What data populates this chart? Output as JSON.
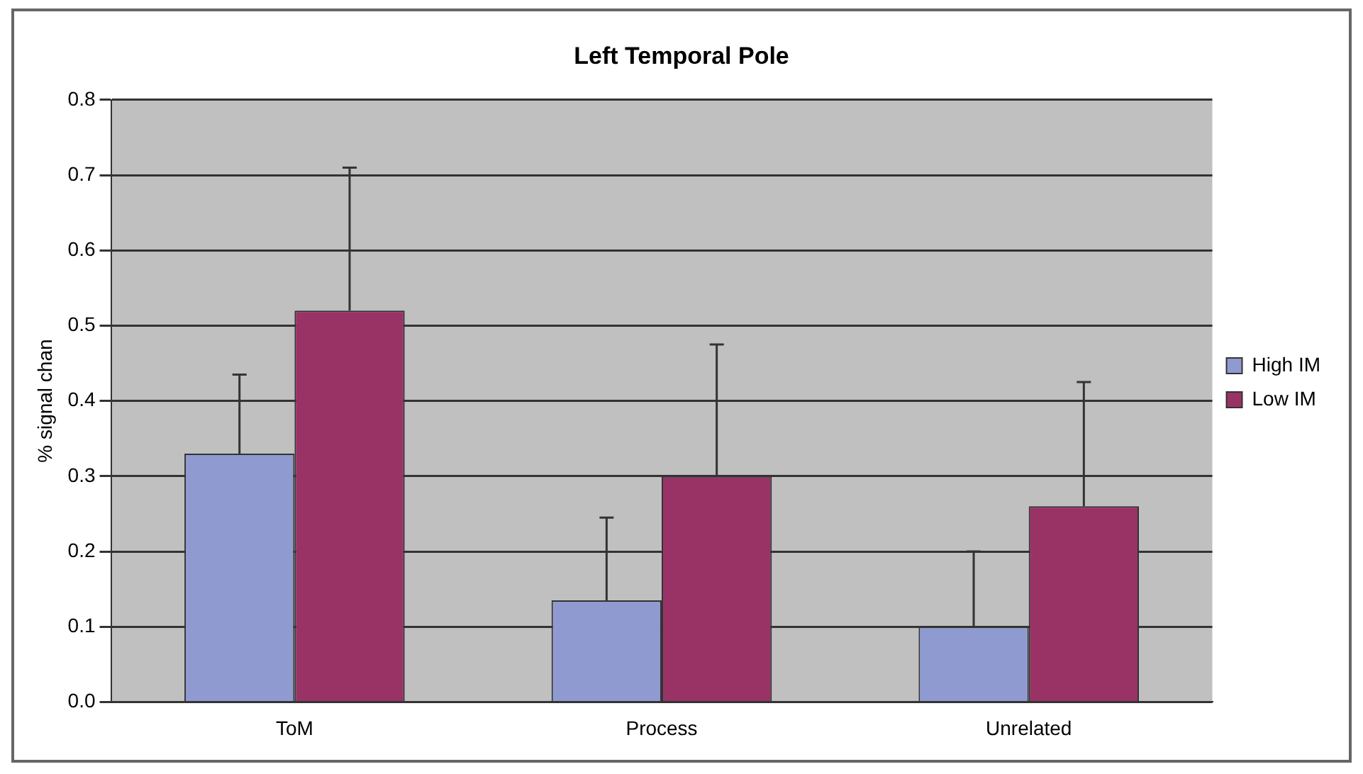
{
  "chart_data": {
    "type": "bar",
    "title": "Left Temporal Pole",
    "ylabel": "% signal chan",
    "categories": [
      "ToM",
      "Process",
      "Unrelated"
    ],
    "series": [
      {
        "name": "High IM",
        "color": "#8f9bd0",
        "values": [
          0.33,
          0.135,
          0.1
        ],
        "errors": [
          [
            0.33,
            0.435
          ],
          [
            0.135,
            0.245
          ],
          [
            0.1,
            0.2
          ]
        ]
      },
      {
        "name": "Low IM",
        "color": "#993366",
        "values": [
          0.52,
          0.3,
          0.26
        ],
        "errors": [
          [
            0.52,
            0.71
          ],
          [
            0.3,
            0.475
          ],
          [
            0.26,
            0.425
          ]
        ]
      }
    ],
    "ylim": [
      0,
      0.8
    ],
    "yticks": [
      {
        "value": 0,
        "label": "0.0"
      },
      0.1,
      0.2,
      0.3,
      0.4,
      0.5,
      0.6,
      0.7,
      0.8
    ],
    "grid": "y",
    "legend": "right"
  }
}
